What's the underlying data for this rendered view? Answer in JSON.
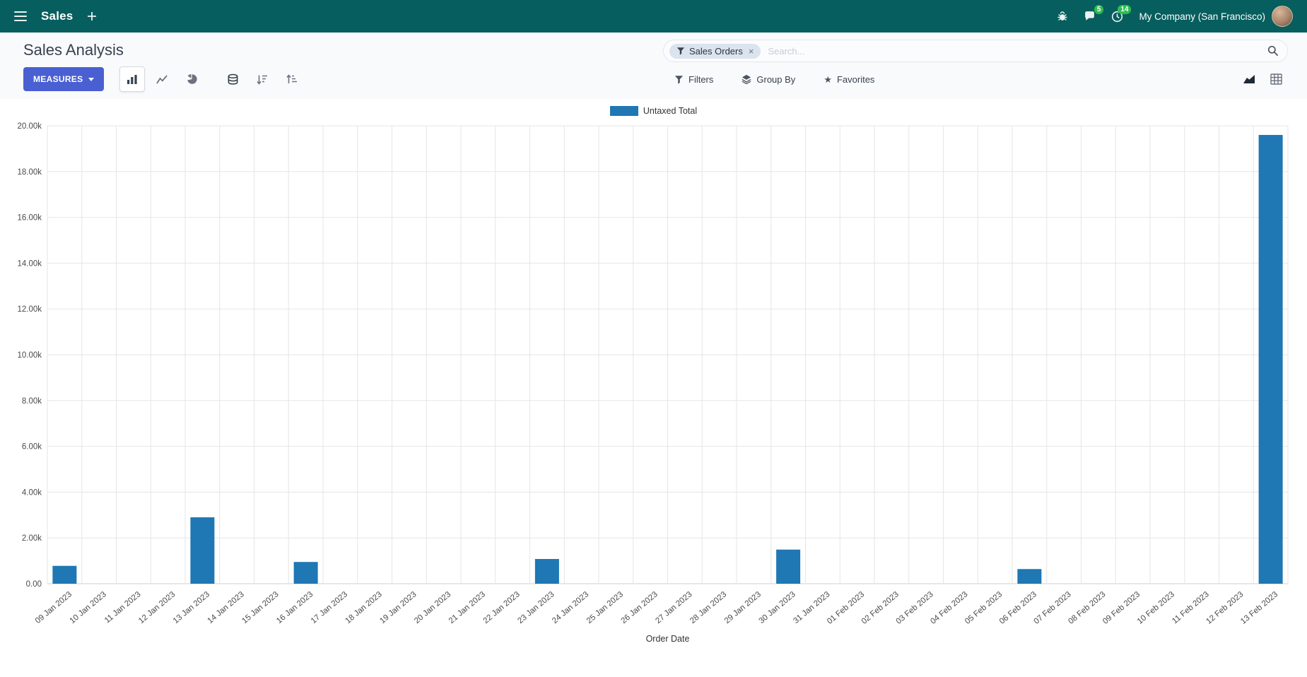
{
  "navbar": {
    "app_name": "Sales",
    "company": "My Company (San Francisco)",
    "messages_badge": "5",
    "activities_badge": "14"
  },
  "control_panel": {
    "breadcrumb": "Sales Analysis",
    "measures_label": "MEASURES",
    "search": {
      "facet_label": "Sales Orders",
      "facet_remove": "×",
      "placeholder": "Search..."
    },
    "filters_label": "Filters",
    "group_by_label": "Group By",
    "favorites_label": "Favorites"
  },
  "colors": {
    "brand_teal": "#075e5e",
    "primary_button": "#4a5fd2",
    "badge_green": "#2ebd4e",
    "bar_blue": "#1f77b4"
  },
  "chart_data": {
    "type": "bar",
    "title": "",
    "legend_label": "Untaxed Total",
    "xlabel": "Order Date",
    "ylabel": "",
    "ylim": [
      0,
      20000
    ],
    "ytick_step": 2000,
    "ytick_labels": [
      "0.00",
      "2.00k",
      "4.00k",
      "6.00k",
      "8.00k",
      "10.00k",
      "12.00k",
      "14.00k",
      "16.00k",
      "18.00k",
      "20.00k"
    ],
    "series_color": "#1f77b4",
    "grid": true,
    "legend_position": "top",
    "categories": [
      "09 Jan 2023",
      "10 Jan 2023",
      "11 Jan 2023",
      "12 Jan 2023",
      "13 Jan 2023",
      "14 Jan 2023",
      "15 Jan 2023",
      "16 Jan 2023",
      "17 Jan 2023",
      "18 Jan 2023",
      "19 Jan 2023",
      "20 Jan 2023",
      "21 Jan 2023",
      "22 Jan 2023",
      "23 Jan 2023",
      "24 Jan 2023",
      "25 Jan 2023",
      "26 Jan 2023",
      "27 Jan 2023",
      "28 Jan 2023",
      "29 Jan 2023",
      "30 Jan 2023",
      "31 Jan 2023",
      "01 Feb 2023",
      "02 Feb 2023",
      "03 Feb 2023",
      "04 Feb 2023",
      "05 Feb 2023",
      "06 Feb 2023",
      "07 Feb 2023",
      "08 Feb 2023",
      "09 Feb 2023",
      "10 Feb 2023",
      "11 Feb 2023",
      "12 Feb 2023",
      "13 Feb 2023"
    ],
    "values": [
      780,
      0,
      0,
      0,
      2900,
      0,
      0,
      950,
      0,
      0,
      0,
      0,
      0,
      0,
      1080,
      0,
      0,
      0,
      0,
      0,
      0,
      1490,
      0,
      0,
      0,
      0,
      0,
      0,
      640,
      0,
      0,
      0,
      0,
      0,
      0,
      19600
    ]
  }
}
